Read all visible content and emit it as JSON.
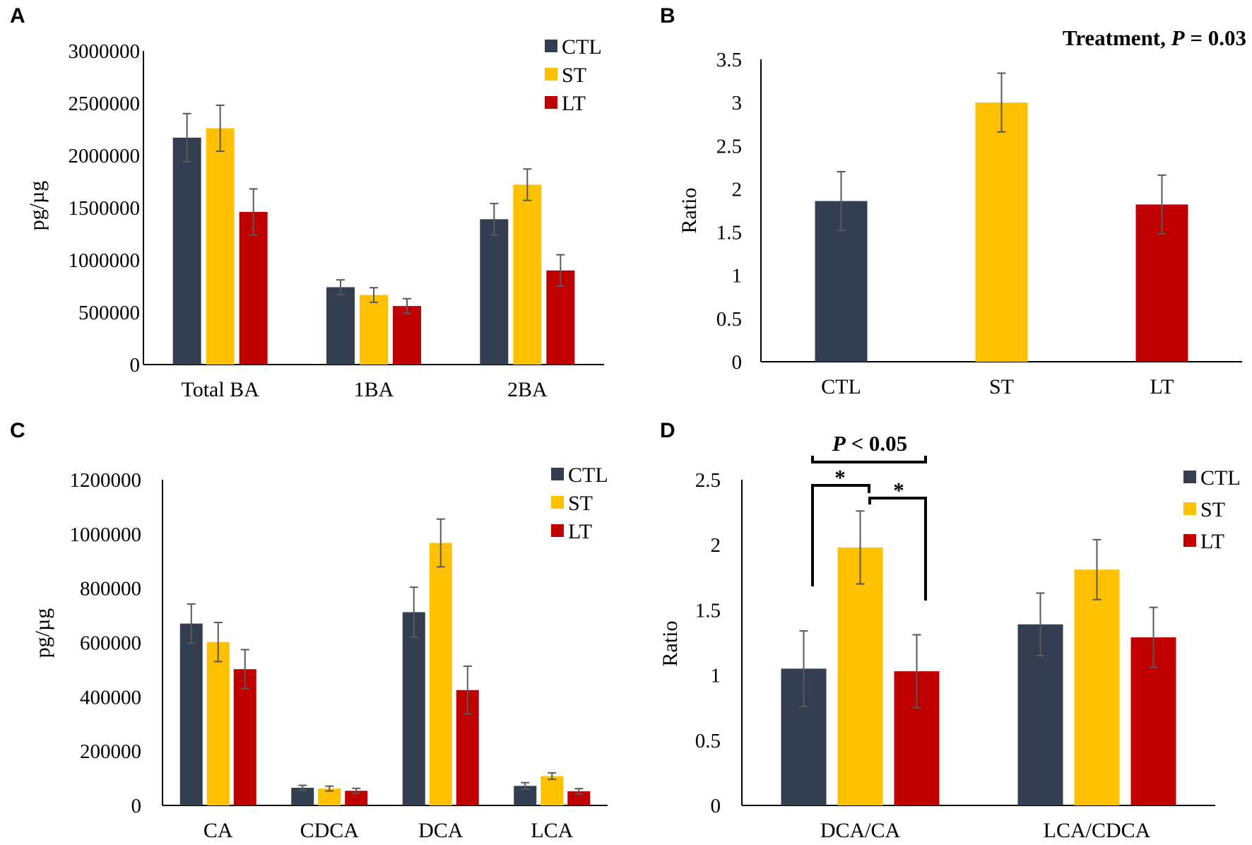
{
  "colors": {
    "CTL": "#333f50",
    "ST": "#ffc000",
    "LT": "#c00000"
  },
  "legend": {
    "labels": [
      "CTL",
      "ST",
      "LT"
    ]
  },
  "chart_data": [
    {
      "panel": "A",
      "type": "bar",
      "ylabel": "pg/µg",
      "ylim": [
        0,
        3000000
      ],
      "yticks": [
        0,
        500000,
        1000000,
        1500000,
        2000000,
        2500000,
        3000000
      ],
      "categories": [
        "Total BA",
        "1BA",
        "2BA"
      ],
      "series": [
        {
          "name": "CTL",
          "values": [
            2170000,
            740000,
            1390000
          ],
          "errors": [
            230000,
            70000,
            150000
          ]
        },
        {
          "name": "ST",
          "values": [
            2260000,
            665000,
            1720000
          ],
          "errors": [
            220000,
            70000,
            150000
          ]
        },
        {
          "name": "LT",
          "values": [
            1460000,
            560000,
            900000
          ],
          "errors": [
            220000,
            70000,
            150000
          ]
        }
      ],
      "legend_position": "top-right"
    },
    {
      "panel": "B",
      "type": "bar",
      "ylabel": "Ratio",
      "ylim": [
        0,
        3.5
      ],
      "yticks": [
        0,
        0.5,
        1,
        1.5,
        2,
        2.5,
        3,
        3.5
      ],
      "categories": [
        "CTL",
        "ST",
        "LT"
      ],
      "values": [
        1.86,
        3.0,
        1.82
      ],
      "errors": [
        0.34,
        0.34,
        0.34
      ],
      "annotation_prefix": "Treatment, ",
      "annotation_p": "P",
      "annotation_suffix": " = 0.03"
    },
    {
      "panel": "C",
      "type": "bar",
      "ylabel": "pg/µg",
      "ylim": [
        0,
        1200000
      ],
      "yticks": [
        0,
        200000,
        400000,
        600000,
        800000,
        1000000,
        1200000
      ],
      "categories": [
        "CA",
        "CDCA",
        "DCA",
        "LCA"
      ],
      "series": [
        {
          "name": "CTL",
          "values": [
            670000,
            65000,
            712000,
            72000
          ],
          "errors": [
            72000,
            9000,
            92000,
            12000
          ]
        },
        {
          "name": "ST",
          "values": [
            602000,
            62000,
            967000,
            108000
          ],
          "errors": [
            72000,
            9000,
            88000,
            12000
          ]
        },
        {
          "name": "LT",
          "values": [
            502000,
            54000,
            425000,
            52000
          ],
          "errors": [
            72000,
            9000,
            88000,
            10000
          ]
        }
      ],
      "legend_position": "top-right"
    },
    {
      "panel": "D",
      "type": "bar",
      "ylabel": "Ratio",
      "ylim": [
        0,
        2.5
      ],
      "yticks": [
        0,
        0.5,
        1,
        1.5,
        2,
        2.5
      ],
      "categories": [
        "DCA/CA",
        "LCA/CDCA"
      ],
      "series": [
        {
          "name": "CTL",
          "values": [
            1.05,
            1.39
          ],
          "errors": [
            0.29,
            0.24
          ]
        },
        {
          "name": "ST",
          "values": [
            1.98,
            1.81
          ],
          "errors": [
            0.28,
            0.23
          ]
        },
        {
          "name": "LT",
          "values": [
            1.03,
            1.29
          ],
          "errors": [
            0.28,
            0.23
          ]
        }
      ],
      "legend_position": "top-right",
      "annotation_p": "P",
      "annotation_suffix": " < 0.05",
      "sig_marks": [
        "*",
        "*"
      ]
    }
  ]
}
